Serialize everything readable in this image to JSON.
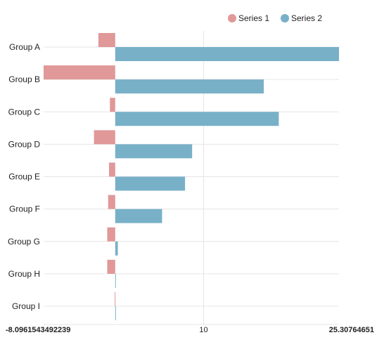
{
  "chart_data": {
    "type": "bar",
    "orientation": "horizontal",
    "categories": [
      "Group A",
      "Group B",
      "Group C",
      "Group D",
      "Group E",
      "Group F",
      "Group G",
      "Group H",
      "Group I"
    ],
    "series": [
      {
        "name": "Series 1",
        "color": "#e09899",
        "values": [
          -1.9,
          -8.0961543492239,
          -0.6,
          -2.4,
          -0.7,
          -0.8,
          -0.9,
          -0.9,
          -0.05
        ]
      },
      {
        "name": "Series 2",
        "color": "#78b0c8",
        "values": [
          25.30764651,
          16.8,
          18.5,
          8.7,
          7.9,
          5.3,
          0.3,
          0.05,
          0.05
        ]
      }
    ],
    "xlim": [
      -8.0961543492239,
      25.30764651
    ],
    "xticks": [
      "-8.0961543492239",
      "10",
      "25.30764651"
    ],
    "tick_values": [
      -8.0961543492239,
      10,
      25.30764651
    ],
    "grid": true,
    "legend_position": "top-right",
    "title": "",
    "xlabel": "",
    "ylabel": ""
  }
}
